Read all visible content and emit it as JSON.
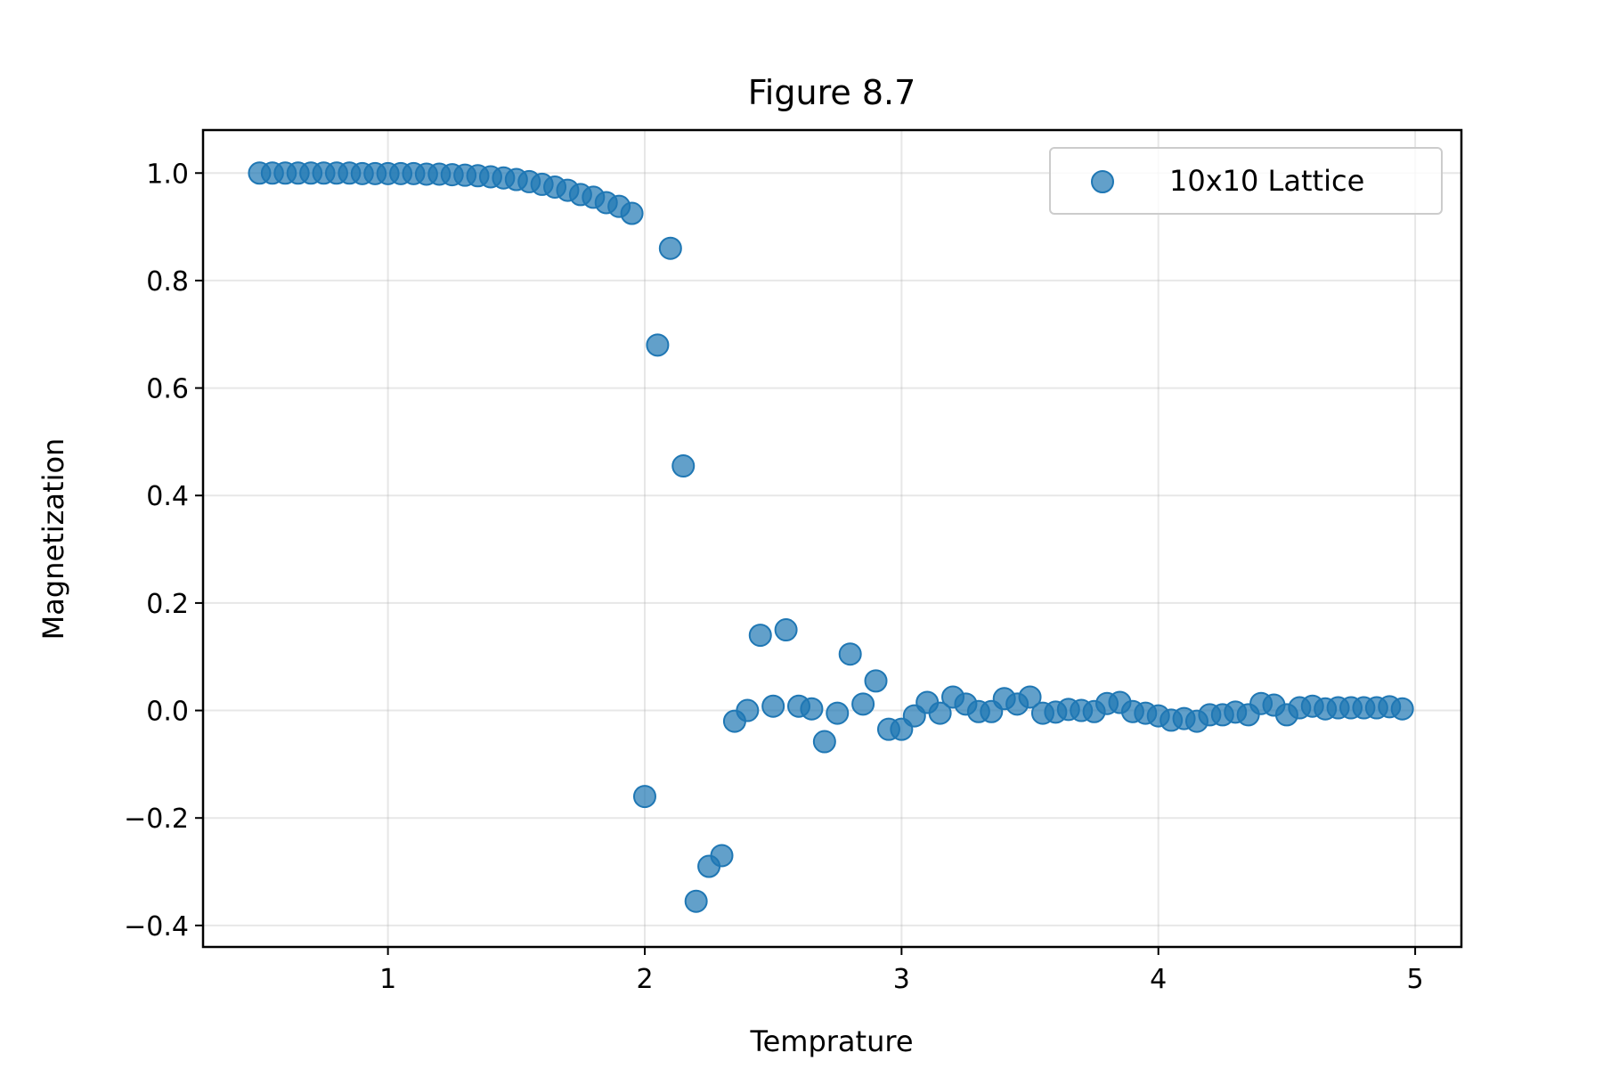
{
  "chart_data": {
    "type": "scatter",
    "title": "Figure 8.7",
    "xlabel": "Temprature",
    "ylabel": "Magnetization",
    "xlim": [
      0.28,
      5.18
    ],
    "ylim": [
      -0.44,
      1.08
    ],
    "x_ticks": [
      1,
      2,
      3,
      4,
      5
    ],
    "x_tick_labels": [
      "1",
      "2",
      "3",
      "4",
      "5"
    ],
    "y_ticks": [
      -0.4,
      -0.2,
      0.0,
      0.2,
      0.4,
      0.6,
      0.8,
      1.0
    ],
    "y_tick_labels": [
      "−0.4",
      "−0.2",
      "0.0",
      "0.2",
      "0.4",
      "0.6",
      "0.8",
      "1.0"
    ],
    "grid": true,
    "legend": {
      "position": "top-right"
    },
    "series": [
      {
        "name": "10x10 Lattice",
        "color": "#1f77b4",
        "x": [
          0.5,
          0.55,
          0.6,
          0.65,
          0.7,
          0.75,
          0.8,
          0.85,
          0.9,
          0.95,
          1.0,
          1.05,
          1.1,
          1.15,
          1.2,
          1.25,
          1.3,
          1.35,
          1.4,
          1.45,
          1.5,
          1.55,
          1.6,
          1.65,
          1.7,
          1.75,
          1.8,
          1.85,
          1.9,
          1.95,
          2.0,
          2.05,
          2.1,
          2.15,
          2.2,
          2.25,
          2.3,
          2.35,
          2.4,
          2.45,
          2.5,
          2.55,
          2.6,
          2.65,
          2.7,
          2.75,
          2.8,
          2.85,
          2.9,
          2.95,
          3.0,
          3.05,
          3.1,
          3.15,
          3.2,
          3.25,
          3.3,
          3.35,
          3.4,
          3.45,
          3.5,
          3.55,
          3.6,
          3.65,
          3.7,
          3.75,
          3.8,
          3.85,
          3.9,
          3.95,
          4.0,
          4.05,
          4.1,
          4.15,
          4.2,
          4.25,
          4.3,
          4.35,
          4.4,
          4.45,
          4.5,
          4.55,
          4.6,
          4.65,
          4.7,
          4.75,
          4.8,
          4.85,
          4.9,
          4.95
        ],
        "y": [
          1.0,
          1.0,
          1.0,
          1.0,
          1.0,
          1.0,
          1.0,
          1.0,
          0.999,
          0.999,
          0.999,
          0.999,
          0.999,
          0.998,
          0.998,
          0.997,
          0.996,
          0.995,
          0.993,
          0.991,
          0.988,
          0.984,
          0.979,
          0.974,
          0.968,
          0.96,
          0.955,
          0.945,
          0.938,
          0.925,
          -0.16,
          0.68,
          0.86,
          0.455,
          -0.355,
          -0.29,
          -0.27,
          -0.02,
          0.0,
          0.14,
          0.008,
          0.15,
          0.008,
          0.003,
          -0.058,
          -0.005,
          0.105,
          0.012,
          0.055,
          -0.035,
          -0.035,
          -0.01,
          0.015,
          -0.005,
          0.025,
          0.012,
          -0.002,
          -0.002,
          0.022,
          0.012,
          0.025,
          -0.005,
          -0.003,
          0.002,
          0.0,
          -0.002,
          0.013,
          0.015,
          -0.002,
          -0.005,
          -0.01,
          -0.018,
          -0.015,
          -0.02,
          -0.008,
          -0.008,
          -0.003,
          -0.008,
          0.013,
          0.01,
          -0.008,
          0.005,
          0.008,
          0.003,
          0.005,
          0.005,
          0.005,
          0.005,
          0.007,
          0.003
        ]
      }
    ]
  }
}
